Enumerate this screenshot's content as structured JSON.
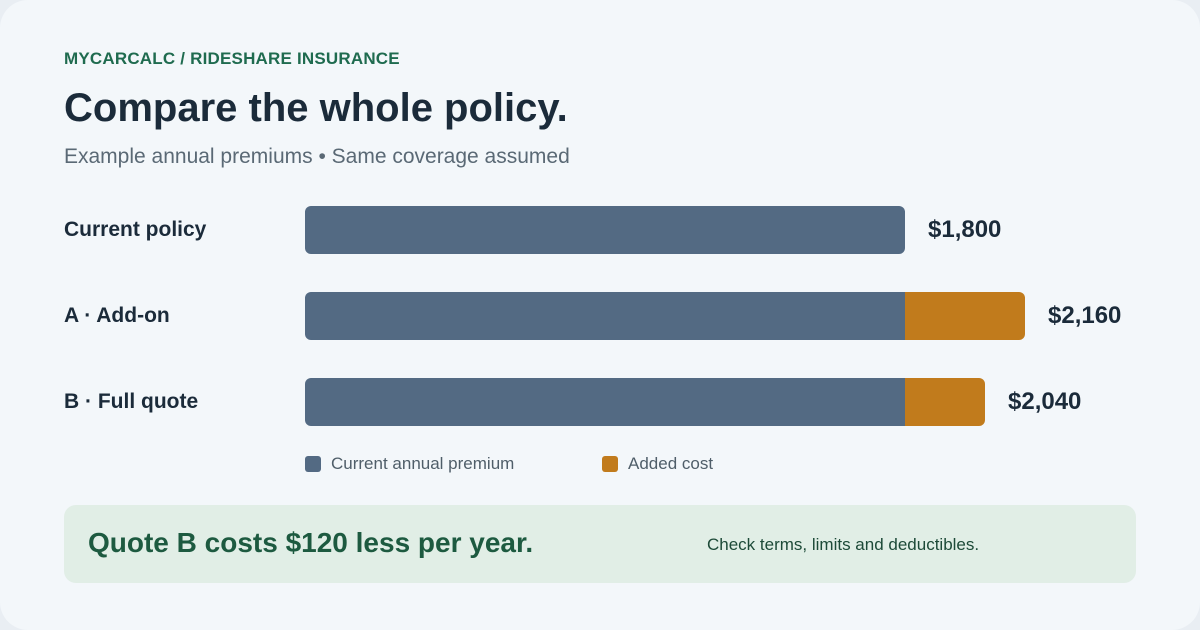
{
  "header": {
    "eyebrow": "MYCARCALC / RIDESHARE INSURANCE",
    "title": "Compare the whole policy.",
    "subtitle": "Example annual premiums • Same coverage assumed"
  },
  "colors": {
    "base": "#536a83",
    "added": "#c17b1c",
    "accent": "#1f6b4f"
  },
  "chart_data": {
    "type": "bar",
    "orientation": "horizontal",
    "stacked": true,
    "categories": [
      "Current policy",
      "A · Add-on",
      "B · Full quote"
    ],
    "series": [
      {
        "name": "Current annual premium",
        "values": [
          1800,
          1800,
          1800
        ]
      },
      {
        "name": "Added cost",
        "values": [
          0,
          360,
          240
        ]
      }
    ],
    "totals": [
      "$1,800",
      "$2,160",
      "$2,040"
    ],
    "legend_position": "bottom",
    "grid": false
  },
  "legend": {
    "base_label": "Current annual premium",
    "added_label": "Added cost"
  },
  "callout": {
    "headline": "Quote B costs $120 less per year.",
    "note": "Check terms, limits and deductibles."
  }
}
